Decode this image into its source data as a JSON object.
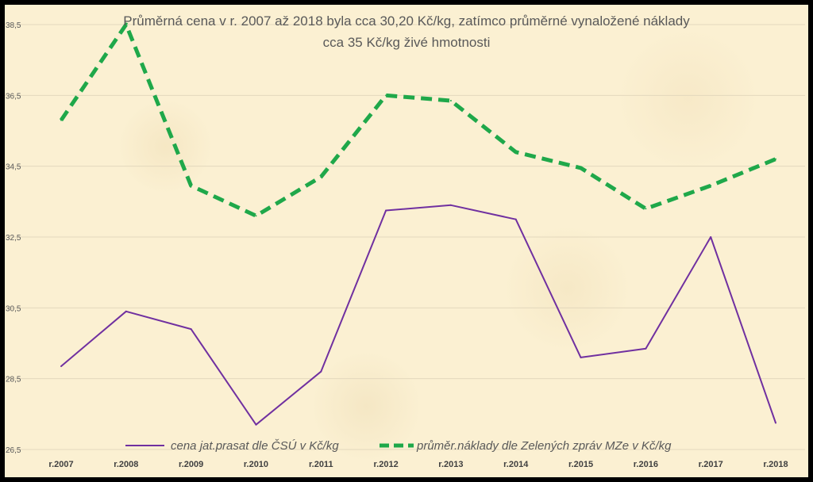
{
  "chart_data": {
    "type": "line",
    "title_lines": [
      "Průměrná cena v r. 2007 až 2018 byla cca 30,20 Kč/kg, zatímco průměrné vynaložené náklady",
      "cca 35 Kč/kg živé hmotnosti"
    ],
    "categories": [
      "r.2007",
      "r.2008",
      "r.2009",
      "r.2010",
      "r.2011",
      "r.2012",
      "r.2013",
      "r.2014",
      "r.2015",
      "r.2016",
      "r.2017",
      "r.2018"
    ],
    "y_ticks": [
      26.5,
      28.5,
      30.5,
      32.5,
      34.5,
      36.5,
      38.5
    ],
    "y_tick_labels": [
      "26,5",
      "28,5",
      "30,5",
      "32,5",
      "34,5",
      "36,5",
      "38,5"
    ],
    "ylim": [
      26.5,
      38.5
    ],
    "grid": true,
    "legend_position": "bottom",
    "series": [
      {
        "name": "cena jat.prasat dle ČSÚ v Kč/kg",
        "color": "#7030a0",
        "style": "solid",
        "values": [
          28.85,
          30.4,
          29.9,
          27.2,
          28.7,
          33.25,
          33.4,
          33.0,
          29.1,
          29.35,
          32.5,
          27.25
        ]
      },
      {
        "name": "průměr.náklady dle Zelených zpráv MZe v Kč/kg",
        "color": "#1fa84a",
        "style": "dashed",
        "values": [
          35.8,
          38.5,
          33.95,
          33.1,
          34.2,
          36.5,
          36.35,
          34.9,
          34.45,
          33.3,
          33.95,
          34.7
        ]
      }
    ]
  }
}
